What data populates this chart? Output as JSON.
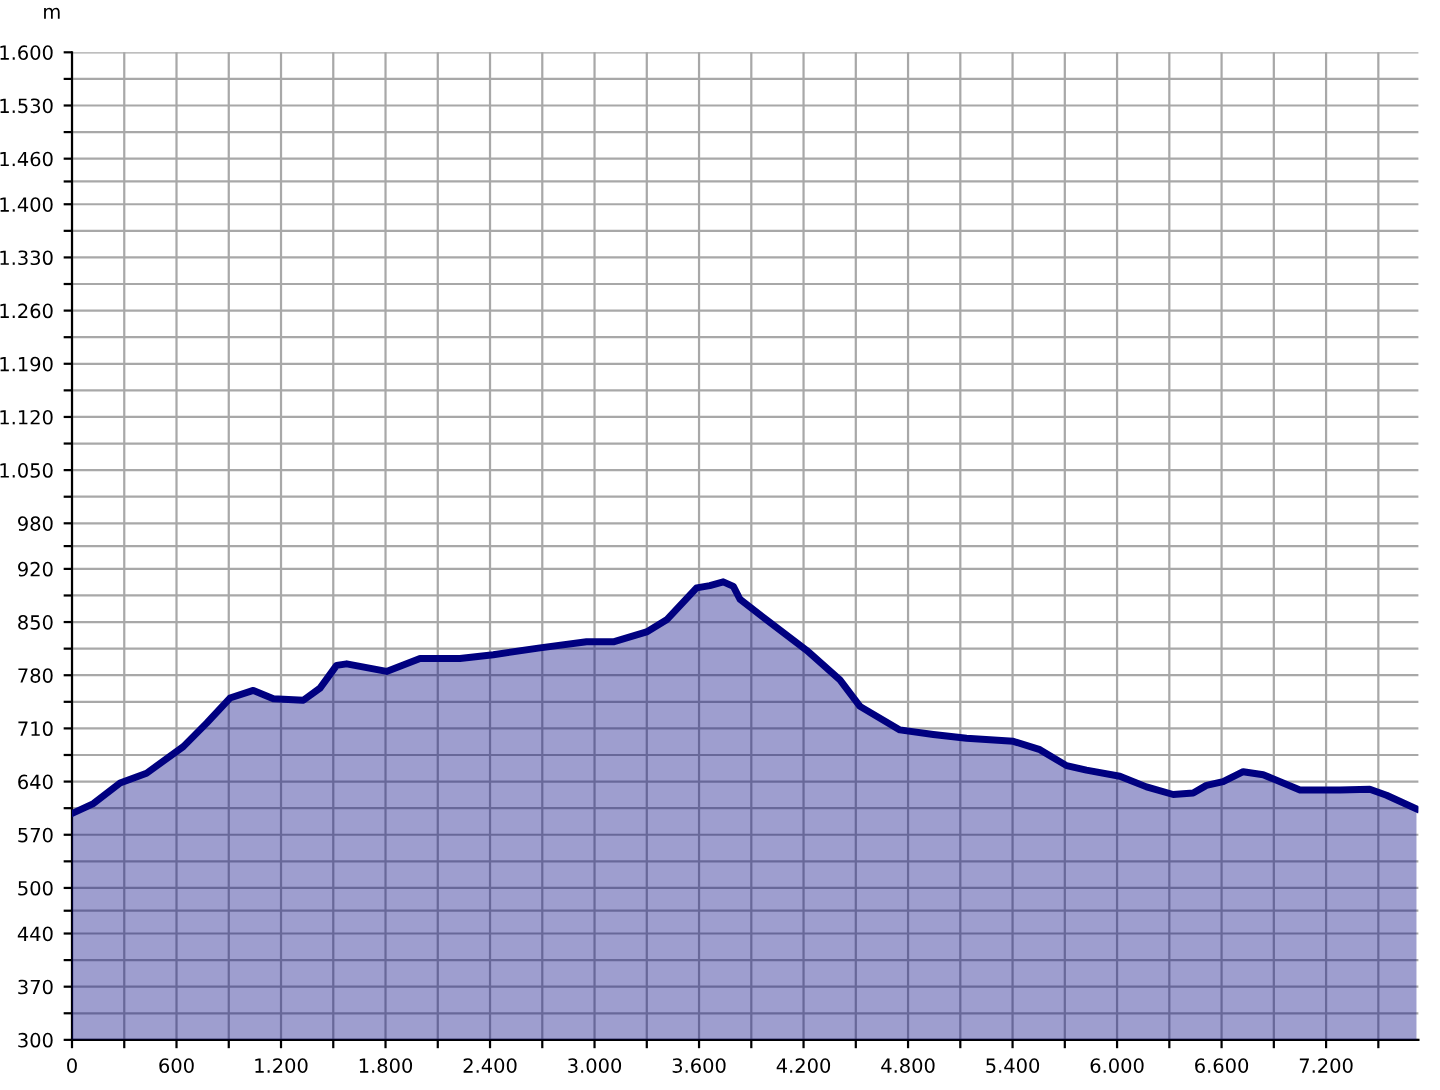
{
  "chart_data": {
    "type": "area",
    "ylabel": "m",
    "x": [
      0,
      123,
      276,
      428,
      639,
      773,
      907,
      1041,
      1156,
      1328,
      1424,
      1519,
      1577,
      1806,
      1998,
      2227,
      2419,
      2687,
      2954,
      3108,
      3299,
      3414,
      3586,
      3662,
      3739,
      3797,
      3835,
      3987,
      4217,
      4409,
      4524,
      4753,
      4945,
      5136,
      5404,
      5557,
      5710,
      5824,
      6016,
      6169,
      6322,
      6437,
      6513,
      6609,
      6724,
      6839,
      7050,
      7279,
      7451,
      7547,
      7719
    ],
    "series": [
      {
        "color": "#000080",
        "values": [
          598,
          611,
          638,
          651,
          686,
          717,
          750,
          760,
          749,
          747,
          763,
          793,
          795,
          785,
          802,
          802,
          807,
          816,
          824,
          824,
          837,
          853,
          895,
          898,
          903,
          897,
          880,
          853,
          813,
          774,
          739,
          708,
          702,
          697,
          693,
          682,
          661,
          655,
          647,
          633,
          623,
          625,
          635,
          640,
          653,
          649,
          629,
          629,
          630,
          622,
          604
        ]
      }
    ],
    "xlim": [
      0,
      7730
    ],
    "ylim": [
      300,
      1600
    ],
    "xticks": [
      0,
      {
        "value": 300,
        "label": null
      },
      {
        "value": 600,
        "label": "600"
      },
      {
        "value": 900,
        "label": null
      },
      {
        "value": 1200,
        "label": "1.200"
      },
      {
        "value": 1500,
        "label": null
      },
      {
        "value": 1800,
        "label": "1.800"
      },
      {
        "value": 2100,
        "label": null
      },
      {
        "value": 2400,
        "label": "2.400"
      },
      {
        "value": 2700,
        "label": null
      },
      {
        "value": 3000,
        "label": "3.000"
      },
      {
        "value": 3300,
        "label": null
      },
      {
        "value": 3600,
        "label": "3.600"
      },
      {
        "value": 3900,
        "label": null
      },
      {
        "value": 4200,
        "label": "4.200"
      },
      {
        "value": 4500,
        "label": null
      },
      {
        "value": 4800,
        "label": "4.800"
      },
      {
        "value": 5100,
        "label": null
      },
      {
        "value": 5400,
        "label": "5.400"
      },
      {
        "value": 5700,
        "label": null
      },
      {
        "value": 6000,
        "label": "6.000"
      },
      {
        "value": 6300,
        "label": null
      },
      {
        "value": 6600,
        "label": "6.600"
      },
      {
        "value": 6900,
        "label": null
      },
      {
        "value": 7200,
        "label": "7.200"
      },
      {
        "value": 7500,
        "label": null
      }
    ],
    "yticks": [
      300,
      {
        "value": 335,
        "label": null
      },
      370,
      {
        "value": 405,
        "label": null
      },
      440,
      {
        "value": 470,
        "label": null
      },
      500,
      {
        "value": 535,
        "label": null
      },
      570,
      {
        "value": 605,
        "label": null
      },
      640,
      {
        "value": 675,
        "label": null
      },
      710,
      {
        "value": 745,
        "label": null
      },
      780,
      {
        "value": 815,
        "label": null
      },
      850,
      {
        "value": 885,
        "label": null
      },
      920,
      {
        "value": 950,
        "label": null
      },
      980,
      {
        "value": 1015,
        "label": null
      },
      {
        "value": 1050,
        "label": "1.050"
      },
      {
        "value": 1085,
        "label": null
      },
      {
        "value": 1120,
        "label": "1.120"
      },
      {
        "value": 1155,
        "label": null
      },
      {
        "value": 1190,
        "label": "1.190"
      },
      {
        "value": 1225,
        "label": null
      },
      {
        "value": 1260,
        "label": "1.260"
      },
      {
        "value": 1295,
        "label": null
      },
      {
        "value": 1330,
        "label": "1.330"
      },
      {
        "value": 1365,
        "label": null
      },
      {
        "value": 1400,
        "label": "1.400"
      },
      {
        "value": 1430,
        "label": null
      },
      {
        "value": 1460,
        "label": "1.460"
      },
      {
        "value": 1495,
        "label": null
      },
      {
        "value": 1530,
        "label": "1.530"
      },
      {
        "value": 1565,
        "label": null
      },
      {
        "value": 1600,
        "label": "1.600"
      }
    ],
    "grid": true,
    "marker": "none",
    "line_style": "solid",
    "legend": false
  }
}
